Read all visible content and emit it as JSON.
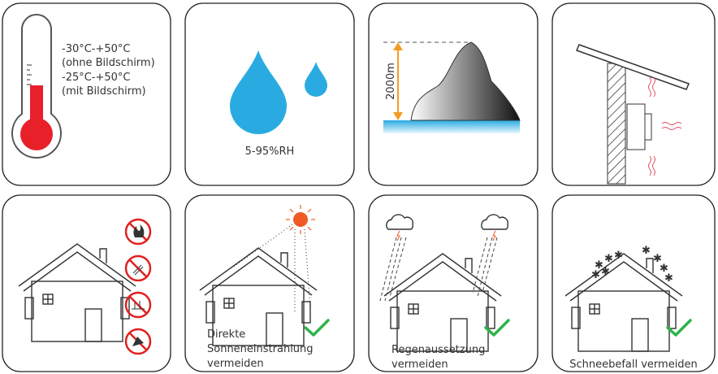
{
  "temperature": {
    "lines": [
      "-30°C-+50°C",
      "(ohne Bildschirm)",
      "-25°C-+50°C",
      "(mit Bildschirm)"
    ]
  },
  "humidity": {
    "label": "5-95%RH"
  },
  "altitude": {
    "label": "2000m"
  },
  "sunlight": {
    "lines": [
      "Direkte",
      "Sonneneinstrahlung",
      "vermeiden"
    ]
  },
  "rain": {
    "lines": [
      "Regenaussetzung",
      "vermeiden"
    ]
  },
  "snow": {
    "lines": [
      "Schneebefall vermeiden"
    ]
  }
}
